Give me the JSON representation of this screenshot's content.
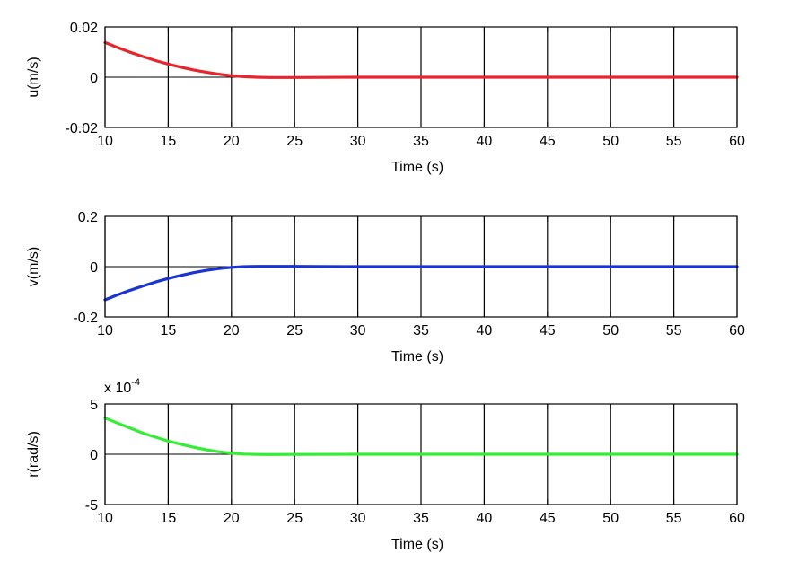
{
  "chart_data": [
    {
      "type": "line",
      "title": "",
      "xlabel": "Time (s)",
      "ylabel": "u(m/s)",
      "xlim": [
        10,
        60
      ],
      "ylim": [
        -0.02,
        0.02
      ],
      "xticks": [
        10,
        15,
        20,
        25,
        30,
        35,
        40,
        45,
        50,
        55,
        60
      ],
      "xtick_labels": [
        "10",
        "15",
        "20",
        "25",
        "30",
        "35",
        "40",
        "45",
        "50",
        "55",
        "60"
      ],
      "yticks": [
        -0.02,
        0,
        0.02
      ],
      "ytick_labels": [
        "-0.02",
        "0",
        "0.02"
      ],
      "exponent_label": "",
      "grid": true,
      "series": [
        {
          "color": "#e8242c",
          "x": [
            10,
            11,
            12,
            13,
            14,
            15,
            16,
            17,
            18,
            19,
            20,
            21,
            22,
            23,
            25,
            30,
            35,
            40,
            45,
            50,
            55,
            60
          ],
          "y": [
            0.0138,
            0.0118,
            0.0099,
            0.0082,
            0.0066,
            0.0052,
            0.004,
            0.0029,
            0.002,
            0.0012,
            0.0006,
            0.0002,
            0.0,
            -0.0001,
            -0.0001,
            0,
            0,
            0,
            0,
            0,
            0,
            0
          ]
        }
      ]
    },
    {
      "type": "line",
      "title": "",
      "xlabel": "Time (s)",
      "ylabel": "v(m/s)",
      "xlim": [
        10,
        60
      ],
      "ylim": [
        -0.2,
        0.2
      ],
      "xticks": [
        10,
        15,
        20,
        25,
        30,
        35,
        40,
        45,
        50,
        55,
        60
      ],
      "xtick_labels": [
        "10",
        "15",
        "20",
        "25",
        "30",
        "35",
        "40",
        "45",
        "50",
        "55",
        "60"
      ],
      "yticks": [
        -0.2,
        0,
        0.2
      ],
      "ytick_labels": [
        "-0.2",
        "0",
        "0.2"
      ],
      "exponent_label": "",
      "grid": true,
      "series": [
        {
          "color": "#1a34d4",
          "x": [
            10,
            11,
            12,
            13,
            14,
            15,
            16,
            17,
            18,
            19,
            20,
            21,
            22,
            23,
            25,
            30,
            35,
            40,
            45,
            50,
            55,
            60
          ],
          "y": [
            -0.132,
            -0.112,
            -0.094,
            -0.077,
            -0.061,
            -0.047,
            -0.035,
            -0.024,
            -0.015,
            -0.008,
            -0.003,
            0.0,
            0.001,
            0.001,
            0.001,
            0,
            0,
            0,
            0,
            0,
            0,
            0
          ]
        }
      ]
    },
    {
      "type": "line",
      "title": "",
      "xlabel": "Time (s)",
      "ylabel": "r(rad/s)",
      "xlim": [
        10,
        60
      ],
      "ylim": [
        -5,
        5
      ],
      "xticks": [
        10,
        15,
        20,
        25,
        30,
        35,
        40,
        45,
        50,
        55,
        60
      ],
      "xtick_labels": [
        "10",
        "15",
        "20",
        "25",
        "30",
        "35",
        "40",
        "45",
        "50",
        "55",
        "60"
      ],
      "yticks": [
        -5,
        0,
        5
      ],
      "ytick_labels": [
        "-5",
        "0",
        "5"
      ],
      "exponent_label": "x 10",
      "exponent_power": "-4",
      "grid": true,
      "series": [
        {
          "color": "#33ee33",
          "x": [
            10,
            11,
            12,
            13,
            14,
            15,
            16,
            17,
            18,
            19,
            20,
            21,
            22,
            23,
            25,
            30,
            35,
            40,
            45,
            50,
            55,
            60
          ],
          "y": [
            3.6,
            3.1,
            2.6,
            2.1,
            1.7,
            1.3,
            1.0,
            0.7,
            0.45,
            0.25,
            0.1,
            0.02,
            -0.02,
            -0.03,
            -0.02,
            0,
            0,
            0,
            0,
            0,
            0,
            0
          ]
        }
      ]
    }
  ]
}
